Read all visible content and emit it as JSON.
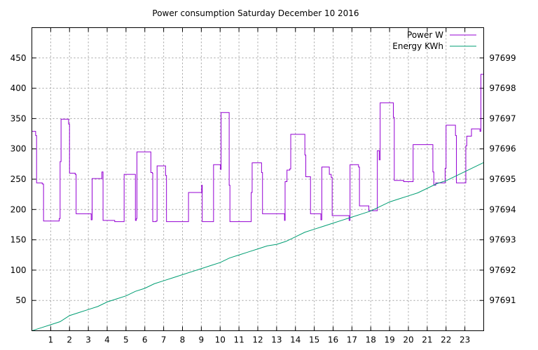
{
  "chart_data": {
    "type": "line",
    "title": "Power consumption Saturday December 10 2016",
    "xlabel": "",
    "ylabel": "",
    "y2label": "",
    "xlim": [
      0,
      24
    ],
    "ylim": [
      0,
      500
    ],
    "y2lim": [
      97690,
      97700
    ],
    "x_ticks": [
      "1",
      "2",
      "3",
      "4",
      "5",
      "6",
      "7",
      "8",
      "9",
      "10",
      "11",
      "12",
      "13",
      "14",
      "15",
      "16",
      "17",
      "18",
      "19",
      "20",
      "21",
      "22",
      "23"
    ],
    "y_ticks": [
      "50",
      "100",
      "150",
      "200",
      "250",
      "300",
      "350",
      "400",
      "450"
    ],
    "y2_ticks": [
      "97691",
      "97692",
      "97693",
      "97694",
      "97695",
      "97696",
      "97697",
      "97698",
      "97699"
    ],
    "grid": true,
    "legend_position": "top-right",
    "series": [
      {
        "name": "Power W",
        "color": "#9400d3",
        "axis": "y",
        "step": true,
        "points": [
          [
            0.0,
            329
          ],
          [
            0.2,
            322
          ],
          [
            0.25,
            244
          ],
          [
            0.55,
            242
          ],
          [
            0.62,
            181
          ],
          [
            1.0,
            181
          ],
          [
            1.45,
            185
          ],
          [
            1.5,
            279
          ],
          [
            1.55,
            349
          ],
          [
            1.95,
            341
          ],
          [
            2.0,
            260
          ],
          [
            2.3,
            258
          ],
          [
            2.35,
            193
          ],
          [
            3.1,
            193
          ],
          [
            3.15,
            183
          ],
          [
            3.2,
            251
          ],
          [
            3.7,
            251
          ],
          [
            3.72,
            262
          ],
          [
            3.78,
            182
          ],
          [
            4.2,
            182
          ],
          [
            4.4,
            180
          ],
          [
            4.85,
            180
          ],
          [
            4.9,
            258
          ],
          [
            5.45,
            258
          ],
          [
            5.5,
            182
          ],
          [
            5.55,
            185
          ],
          [
            5.58,
            295
          ],
          [
            6.3,
            295
          ],
          [
            6.32,
            261
          ],
          [
            6.4,
            260
          ],
          [
            6.42,
            180
          ],
          [
            6.6,
            181
          ],
          [
            6.65,
            272
          ],
          [
            7.05,
            272
          ],
          [
            7.1,
            256
          ],
          [
            7.15,
            180
          ],
          [
            8.0,
            180
          ],
          [
            8.3,
            180
          ],
          [
            8.32,
            228
          ],
          [
            9.0,
            228
          ],
          [
            9.02,
            240
          ],
          [
            9.05,
            180
          ],
          [
            9.6,
            180
          ],
          [
            9.65,
            274
          ],
          [
            10.0,
            274
          ],
          [
            10.02,
            266
          ],
          [
            10.05,
            360
          ],
          [
            10.45,
            360
          ],
          [
            10.48,
            240
          ],
          [
            10.52,
            180
          ],
          [
            11.6,
            180
          ],
          [
            11.65,
            228
          ],
          [
            11.7,
            277
          ],
          [
            12.15,
            277
          ],
          [
            12.2,
            261
          ],
          [
            12.25,
            193
          ],
          [
            13.2,
            193
          ],
          [
            13.4,
            193
          ],
          [
            13.42,
            182
          ],
          [
            13.45,
            246
          ],
          [
            13.55,
            265
          ],
          [
            13.7,
            267
          ],
          [
            13.75,
            324
          ],
          [
            14.45,
            324
          ],
          [
            14.5,
            290
          ],
          [
            14.55,
            254
          ],
          [
            14.75,
            254
          ],
          [
            14.8,
            193
          ],
          [
            15.3,
            193
          ],
          [
            15.35,
            183
          ],
          [
            15.4,
            270
          ],
          [
            15.75,
            270
          ],
          [
            15.8,
            258
          ],
          [
            15.9,
            253
          ],
          [
            15.95,
            190
          ],
          [
            16.8,
            190
          ],
          [
            16.85,
            182
          ],
          [
            16.9,
            274
          ],
          [
            17.3,
            274
          ],
          [
            17.35,
            270
          ],
          [
            17.4,
            206
          ],
          [
            17.8,
            206
          ],
          [
            17.9,
            198
          ],
          [
            18.3,
            198
          ],
          [
            18.35,
            297
          ],
          [
            18.4,
            297
          ],
          [
            18.45,
            282
          ],
          [
            18.5,
            376
          ],
          [
            19.15,
            376
          ],
          [
            19.2,
            352
          ],
          [
            19.25,
            248
          ],
          [
            19.6,
            248
          ],
          [
            19.75,
            246
          ],
          [
            20.2,
            246
          ],
          [
            20.25,
            307
          ],
          [
            21.25,
            307
          ],
          [
            21.3,
            262
          ],
          [
            21.35,
            240
          ],
          [
            21.45,
            244
          ],
          [
            21.9,
            244
          ],
          [
            21.95,
            268
          ],
          [
            22.0,
            339
          ],
          [
            22.45,
            339
          ],
          [
            22.5,
            322
          ],
          [
            22.55,
            244
          ],
          [
            23.0,
            244
          ],
          [
            23.05,
            305
          ],
          [
            23.1,
            321
          ],
          [
            23.3,
            321
          ],
          [
            23.35,
            333
          ],
          [
            23.75,
            333
          ],
          [
            23.8,
            329
          ],
          [
            23.85,
            423
          ],
          [
            24.0,
            423
          ],
          [
            24.0,
            403
          ]
        ]
      },
      {
        "name": "Energy KWh",
        "color": "#009e73",
        "axis": "y2",
        "step": false,
        "points": [
          [
            0.0,
            97690.0
          ],
          [
            0.5,
            97690.1
          ],
          [
            1.0,
            97690.2
          ],
          [
            1.5,
            97690.3
          ],
          [
            2.0,
            97690.5
          ],
          [
            2.5,
            97690.6
          ],
          [
            3.0,
            97690.7
          ],
          [
            3.5,
            97690.8
          ],
          [
            4.0,
            97690.95
          ],
          [
            4.5,
            97691.05
          ],
          [
            5.0,
            97691.15
          ],
          [
            5.5,
            97691.3
          ],
          [
            6.0,
            97691.4
          ],
          [
            6.5,
            97691.55
          ],
          [
            7.0,
            97691.65
          ],
          [
            7.5,
            97691.75
          ],
          [
            8.0,
            97691.85
          ],
          [
            8.5,
            97691.95
          ],
          [
            9.0,
            97692.05
          ],
          [
            9.5,
            97692.15
          ],
          [
            10.0,
            97692.25
          ],
          [
            10.5,
            97692.4
          ],
          [
            11.0,
            97692.5
          ],
          [
            11.5,
            97692.6
          ],
          [
            12.0,
            97692.7
          ],
          [
            12.5,
            97692.8
          ],
          [
            13.0,
            97692.85
          ],
          [
            13.5,
            97692.95
          ],
          [
            14.0,
            97693.1
          ],
          [
            14.5,
            97693.25
          ],
          [
            15.0,
            97693.35
          ],
          [
            15.5,
            97693.45
          ],
          [
            16.0,
            97693.55
          ],
          [
            16.5,
            97693.65
          ],
          [
            17.0,
            97693.75
          ],
          [
            17.5,
            97693.85
          ],
          [
            18.0,
            97693.95
          ],
          [
            18.5,
            97694.1
          ],
          [
            19.0,
            97694.25
          ],
          [
            19.5,
            97694.35
          ],
          [
            20.0,
            97694.45
          ],
          [
            20.5,
            97694.55
          ],
          [
            21.0,
            97694.7
          ],
          [
            21.5,
            97694.85
          ],
          [
            22.0,
            97694.95
          ],
          [
            22.5,
            97695.1
          ],
          [
            23.0,
            97695.25
          ],
          [
            23.5,
            97695.4
          ],
          [
            24.0,
            97695.55
          ]
        ]
      }
    ]
  }
}
